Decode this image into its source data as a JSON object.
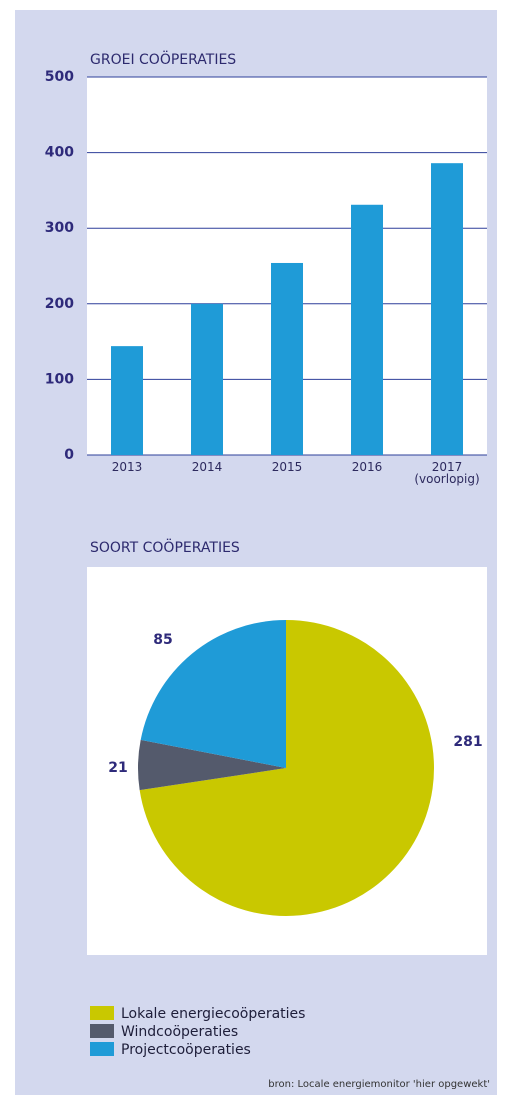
{
  "charts": [
    {
      "type": "bar",
      "title": "GROEI COÖPERATIES",
      "categories": [
        "2013",
        "2014",
        "2015",
        "2016",
        "2017 (voorlopig)"
      ],
      "values": [
        144,
        200,
        254,
        331,
        386
      ],
      "color": "#1f9bd7",
      "ylim": [
        0,
        500
      ],
      "yticks": [
        0,
        100,
        200,
        300,
        400,
        500
      ],
      "grid": true
    },
    {
      "type": "pie",
      "title": "SOORT COÖPERATIES",
      "categories": [
        "Lokale energiecoöperaties",
        "Windcoöperaties",
        "Projectcoöperaties"
      ],
      "values": [
        281,
        21,
        85
      ],
      "colors": [
        "#c9c800",
        "#545a6c",
        "#1f9bd7"
      ]
    }
  ],
  "source": "bron: Locale energiemonitor 'hier opgewekt'"
}
